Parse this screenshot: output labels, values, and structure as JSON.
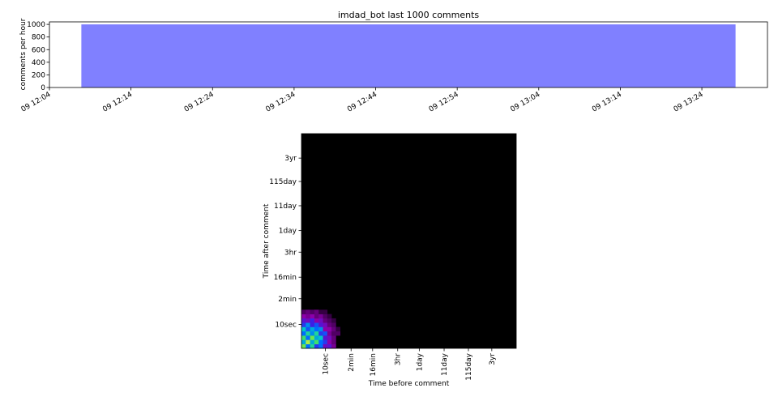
{
  "chart_data": [
    {
      "type": "bar",
      "title": "imdad_bot last 1000 comments",
      "xlabel": "",
      "ylabel": "comments per hour",
      "x_tick_labels": [
        "09 12:04",
        "09 12:14",
        "09 12:24",
        "09 12:34",
        "09 12:44",
        "09 12:54",
        "09 13:04",
        "09 13:14",
        "09 13:24"
      ],
      "x_range_minutes": [
        0,
        90
      ],
      "y_ticks": [
        0,
        200,
        400,
        600,
        800,
        1000
      ],
      "ylim": [
        0,
        1040
      ],
      "bars": [
        {
          "start_minute": 4,
          "end_minute": 86,
          "value": 1000
        }
      ],
      "bar_color": "#8080ff"
    },
    {
      "type": "heatmap",
      "title": "",
      "xlabel": "Time before comment",
      "ylabel": "Time after comment",
      "x_tick_labels": [
        "10sec",
        "2min",
        "16min",
        "3hr",
        "1day",
        "11day",
        "115day",
        "3yr"
      ],
      "y_tick_labels": [
        "10sec",
        "2min",
        "16min",
        "3hr",
        "1day",
        "11day",
        "115day",
        "3yr"
      ],
      "log10_seconds_range": [
        0,
        9
      ],
      "grid_size": 50,
      "background": "#000000",
      "cells": [
        {
          "x": 0,
          "y": 0,
          "v": 0.9
        },
        {
          "x": 1,
          "y": 0,
          "v": 0.6
        },
        {
          "x": 2,
          "y": 0,
          "v": 0.8
        },
        {
          "x": 3,
          "y": 0,
          "v": 0.5
        },
        {
          "x": 4,
          "y": 0,
          "v": 0.6
        },
        {
          "x": 5,
          "y": 0,
          "v": 0.35
        },
        {
          "x": 6,
          "y": 0,
          "v": 0.4
        },
        {
          "x": 7,
          "y": 0,
          "v": 0.25
        },
        {
          "x": 0,
          "y": 1,
          "v": 0.7
        },
        {
          "x": 1,
          "y": 1,
          "v": 0.95
        },
        {
          "x": 2,
          "y": 1,
          "v": 0.7
        },
        {
          "x": 3,
          "y": 1,
          "v": 0.85
        },
        {
          "x": 4,
          "y": 1,
          "v": 0.6
        },
        {
          "x": 5,
          "y": 1,
          "v": 0.5
        },
        {
          "x": 6,
          "y": 1,
          "v": 0.3
        },
        {
          "x": 7,
          "y": 1,
          "v": 0.2
        },
        {
          "x": 0,
          "y": 2,
          "v": 0.85
        },
        {
          "x": 1,
          "y": 2,
          "v": 0.6
        },
        {
          "x": 2,
          "y": 2,
          "v": 0.9
        },
        {
          "x": 3,
          "y": 2,
          "v": 0.7
        },
        {
          "x": 4,
          "y": 2,
          "v": 0.75
        },
        {
          "x": 5,
          "y": 2,
          "v": 0.4
        },
        {
          "x": 6,
          "y": 2,
          "v": 0.35
        },
        {
          "x": 7,
          "y": 2,
          "v": 0.2
        },
        {
          "x": 0,
          "y": 3,
          "v": 0.6
        },
        {
          "x": 1,
          "y": 3,
          "v": 0.8
        },
        {
          "x": 2,
          "y": 3,
          "v": 0.65
        },
        {
          "x": 3,
          "y": 3,
          "v": 0.8
        },
        {
          "x": 4,
          "y": 3,
          "v": 0.5
        },
        {
          "x": 5,
          "y": 3,
          "v": 0.55
        },
        {
          "x": 6,
          "y": 3,
          "v": 0.25
        },
        {
          "x": 7,
          "y": 3,
          "v": 0.15
        },
        {
          "x": 8,
          "y": 3,
          "v": 0.15
        },
        {
          "x": 0,
          "y": 4,
          "v": 0.75
        },
        {
          "x": 1,
          "y": 4,
          "v": 0.55
        },
        {
          "x": 2,
          "y": 4,
          "v": 0.7
        },
        {
          "x": 3,
          "y": 4,
          "v": 0.6
        },
        {
          "x": 4,
          "y": 4,
          "v": 0.65
        },
        {
          "x": 5,
          "y": 4,
          "v": 0.3
        },
        {
          "x": 6,
          "y": 4,
          "v": 0.3
        },
        {
          "x": 7,
          "y": 4,
          "v": 0.2
        },
        {
          "x": 8,
          "y": 4,
          "v": 0.1
        },
        {
          "x": 0,
          "y": 5,
          "v": 0.5
        },
        {
          "x": 1,
          "y": 5,
          "v": 0.65
        },
        {
          "x": 2,
          "y": 5,
          "v": 0.45
        },
        {
          "x": 3,
          "y": 5,
          "v": 0.55
        },
        {
          "x": 4,
          "y": 5,
          "v": 0.4
        },
        {
          "x": 5,
          "y": 5,
          "v": 0.35
        },
        {
          "x": 6,
          "y": 5,
          "v": 0.2
        },
        {
          "x": 7,
          "y": 5,
          "v": 0.15
        },
        {
          "x": 0,
          "y": 6,
          "v": 0.4
        },
        {
          "x": 1,
          "y": 6,
          "v": 0.35
        },
        {
          "x": 2,
          "y": 6,
          "v": 0.45
        },
        {
          "x": 3,
          "y": 6,
          "v": 0.3
        },
        {
          "x": 4,
          "y": 6,
          "v": 0.35
        },
        {
          "x": 5,
          "y": 6,
          "v": 0.2
        },
        {
          "x": 6,
          "y": 6,
          "v": 0.15
        },
        {
          "x": 7,
          "y": 6,
          "v": 0.1
        },
        {
          "x": 0,
          "y": 7,
          "v": 0.3
        },
        {
          "x": 1,
          "y": 7,
          "v": 0.25
        },
        {
          "x": 2,
          "y": 7,
          "v": 0.3
        },
        {
          "x": 3,
          "y": 7,
          "v": 0.2
        },
        {
          "x": 4,
          "y": 7,
          "v": 0.25
        },
        {
          "x": 5,
          "y": 7,
          "v": 0.15
        },
        {
          "x": 6,
          "y": 7,
          "v": 0.1
        },
        {
          "x": 0,
          "y": 8,
          "v": 0.15
        },
        {
          "x": 1,
          "y": 8,
          "v": 0.2
        },
        {
          "x": 2,
          "y": 8,
          "v": 0.15
        },
        {
          "x": 3,
          "y": 8,
          "v": 0.2
        },
        {
          "x": 4,
          "y": 8,
          "v": 0.1
        },
        {
          "x": 5,
          "y": 8,
          "v": 0.1
        }
      ]
    }
  ]
}
